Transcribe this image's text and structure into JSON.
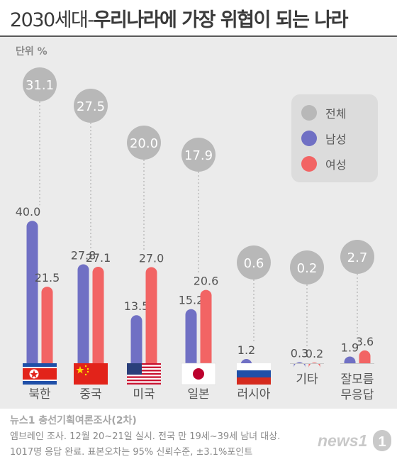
{
  "title": {
    "part1": "2030세대-",
    "part2": "우리나라에 가장 위협이 되는 나라"
  },
  "unit_label": "단위 %",
  "legend": [
    {
      "label": "전체",
      "color": "#b8b8b8"
    },
    {
      "label": "남성",
      "color": "#7070c4"
    },
    {
      "label": "여성",
      "color": "#f26464"
    }
  ],
  "chart_data": {
    "type": "bar",
    "title": "2030세대-우리나라에 가장 위협이 되는 나라",
    "unit": "단위 %",
    "categories": [
      "북한",
      "중국",
      "미국",
      "일본",
      "러시아",
      "기타",
      "잘모름/무응답"
    ],
    "series": [
      {
        "name": "전체",
        "values": [
          31.1,
          27.5,
          20.0,
          17.9,
          0.6,
          0.2,
          2.7
        ]
      },
      {
        "name": "남성",
        "values": [
          40.0,
          27.8,
          13.5,
          15.2,
          1.2,
          0.3,
          1.9
        ]
      },
      {
        "name": "여성",
        "values": [
          21.5,
          27.1,
          27.0,
          20.6,
          0.0,
          0.2,
          3.6
        ]
      }
    ],
    "value_labels": {
      "전체": [
        "31.1",
        "27.5",
        "20.0",
        "17.9",
        "0.6",
        "0.2",
        "2.7"
      ],
      "남성": [
        "40.0",
        "27.8",
        "13.5",
        "15.2",
        "1.2",
        "0.3",
        "1.9"
      ],
      "여성": [
        "21.5",
        "27.1",
        "27.0",
        "20.6",
        "",
        "0.2",
        "3.6"
      ]
    },
    "category_lines": [
      [
        "북한"
      ],
      [
        "중국"
      ],
      [
        "미국"
      ],
      [
        "일본"
      ],
      [
        "러시아"
      ],
      [
        "기타"
      ],
      [
        "잘모름",
        "무응답"
      ]
    ],
    "flags": [
      "north-korea-flag",
      "china-flag",
      "usa-flag",
      "japan-flag",
      "russia-flag",
      "",
      ""
    ],
    "colors": {
      "total": "#b8b8b8",
      "male": "#7070c4",
      "female": "#f26464"
    },
    "ylim": [
      0,
      40
    ],
    "legend_position": "top-right",
    "grid": false
  },
  "footer": {
    "source": "뉴스1 충선기획여론조사(2차)",
    "note1": "엠브레인 조사. 12월 20~21일 실시. 전국 만 19세~39세 남녀 대상.",
    "note2": "1017명 응답 완료. 표본오차는 95% 신뢰수준, ±3.1%포인트",
    "logo": "news1"
  }
}
